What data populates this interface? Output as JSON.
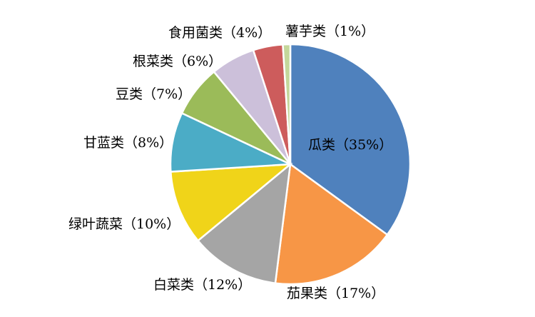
{
  "chart_data": {
    "type": "pie",
    "slices": [
      {
        "label": "瓜类（35%）",
        "value": 35,
        "color": "#4f81bd"
      },
      {
        "label": "茄果类（17%）",
        "value": 17,
        "color": "#f79646"
      },
      {
        "label": "白菜类（12%）",
        "value": 12,
        "color": "#a5a5a5"
      },
      {
        "label": "绿叶蔬菜（10%）",
        "value": 10,
        "color": "#f0d419"
      },
      {
        "label": "甘蓝类（8%）",
        "value": 8,
        "color": "#4bacc6"
      },
      {
        "label": "豆类（7%）",
        "value": 7,
        "color": "#9bbb59"
      },
      {
        "label": "根菜类（6%）",
        "value": 6,
        "color": "#ccc0da"
      },
      {
        "label": "食用菌类（4%）",
        "value": 4,
        "color": "#cd5c5c"
      },
      {
        "label": "薯芋类（1%）",
        "value": 1,
        "color": "#c4d79b"
      }
    ],
    "start_angle": "top",
    "direction": "clockwise",
    "legend": "none"
  }
}
